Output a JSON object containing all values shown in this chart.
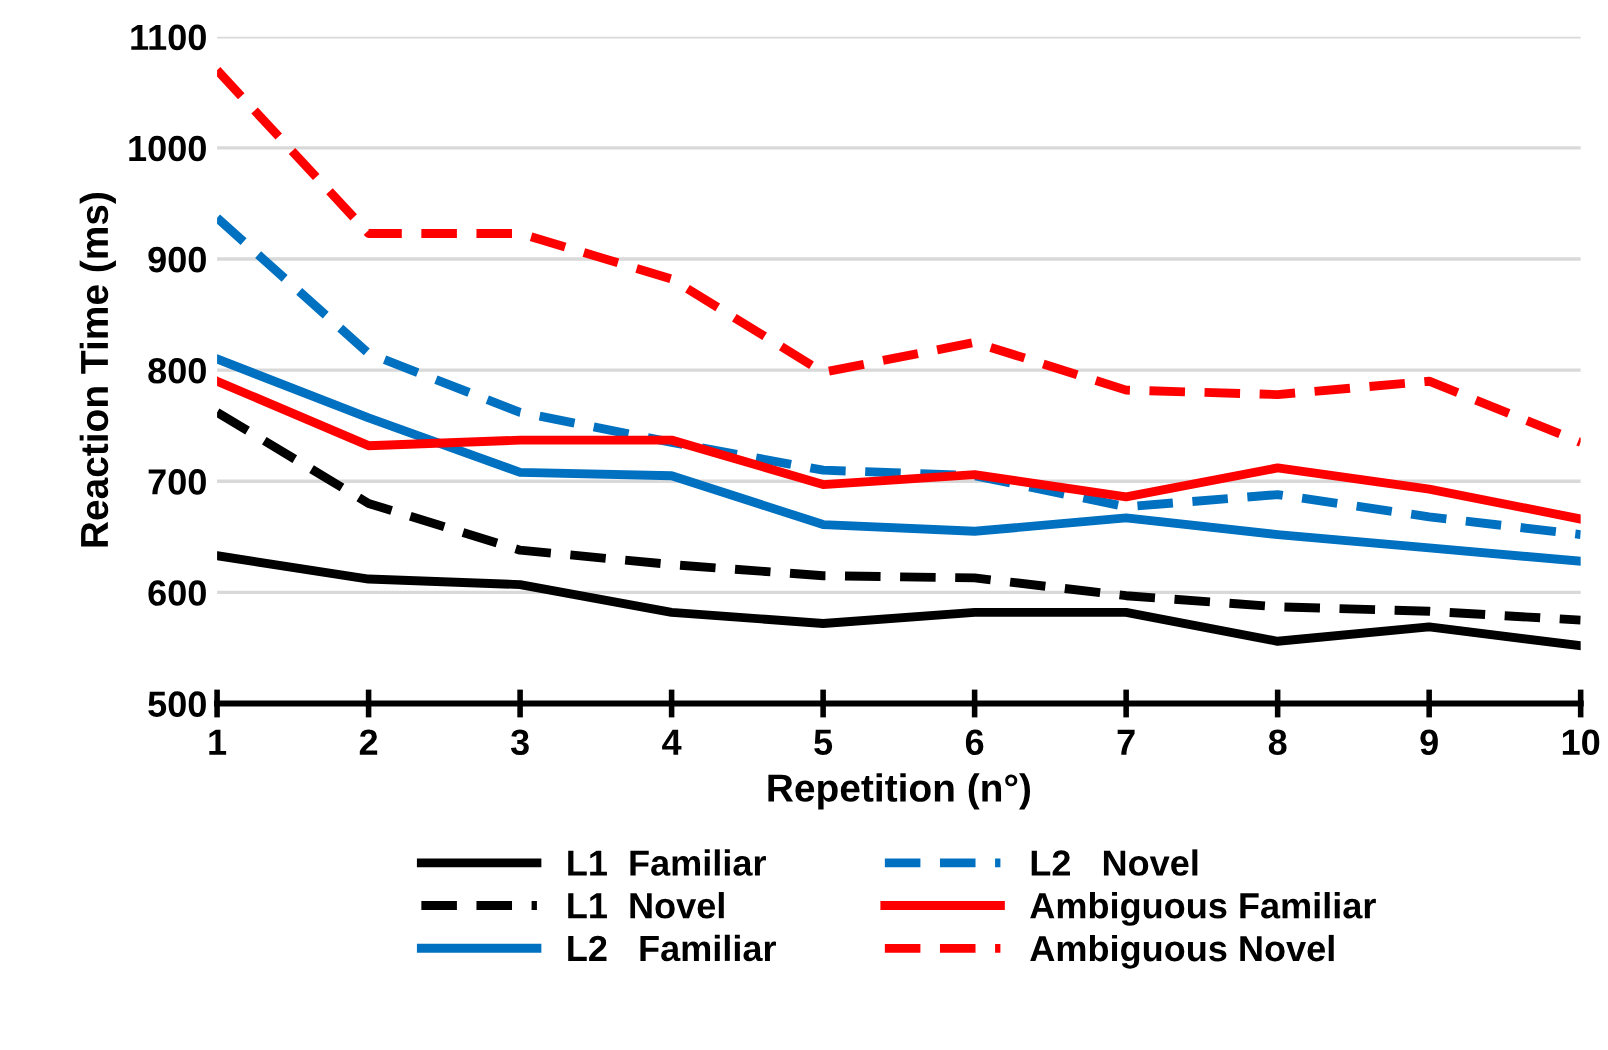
{
  "chart_data": {
    "type": "line",
    "xlabel": "Repetition (n°)",
    "ylabel": "Reaction Time (ms)",
    "x": [
      1,
      2,
      3,
      4,
      5,
      6,
      7,
      8,
      9,
      10
    ],
    "xlim": [
      1,
      10
    ],
    "xticks": [
      1,
      2,
      3,
      4,
      5,
      6,
      7,
      8,
      9,
      10
    ],
    "ylim": [
      500,
      1100
    ],
    "yticks": [
      500,
      600,
      700,
      800,
      900,
      1000,
      1100
    ],
    "grid": "y",
    "legend": "bottom",
    "marker": "none",
    "series": [
      {
        "name": "L1  Familiar",
        "color": "#000000",
        "line_style": "solid",
        "values": [
          633,
          612,
          607,
          582,
          572,
          582,
          582,
          556,
          569,
          552
        ]
      },
      {
        "name": "L1  Novel",
        "color": "#000000",
        "line_style": "dashed",
        "values": [
          762,
          680,
          638,
          625,
          615,
          613,
          597,
          587,
          583,
          575
        ]
      },
      {
        "name": "L2   Familiar",
        "color": "#0070c0",
        "line_style": "solid",
        "values": [
          810,
          757,
          708,
          705,
          661,
          655,
          667,
          652,
          640,
          628
        ]
      },
      {
        "name": "L2   Novel",
        "color": "#0070c0",
        "line_style": "dashed",
        "values": [
          937,
          815,
          762,
          735,
          710,
          705,
          677,
          688,
          668,
          652
        ]
      },
      {
        "name": "Ambiguous Familiar",
        "color": "#ff0000",
        "line_style": "solid",
        "values": [
          790,
          732,
          737,
          737,
          697,
          706,
          686,
          712,
          693,
          666
        ]
      },
      {
        "name": "Ambiguous Novel",
        "color": "#ff0000",
        "line_style": "dashed",
        "values": [
          1070,
          923,
          923,
          882,
          798,
          825,
          782,
          778,
          790,
          735
        ]
      }
    ]
  }
}
